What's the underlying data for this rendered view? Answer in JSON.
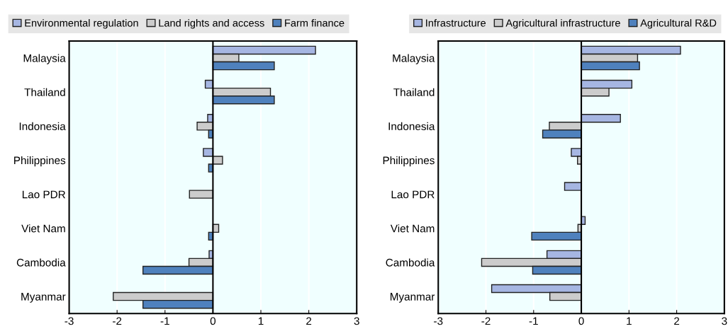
{
  "chart_data": [
    {
      "type": "bar",
      "orientation": "horizontal",
      "categories": [
        "Malaysia",
        "Thailand",
        "Indonesia",
        "Philippines",
        "Lao PDR",
        "Viet Nam",
        "Cambodia",
        "Myanmar"
      ],
      "series": [
        {
          "name": "Environmental regulation",
          "color": "#a6b6e2",
          "values": [
            2.14,
            -0.16,
            -0.11,
            -0.2,
            null,
            null,
            -0.08,
            null
          ]
        },
        {
          "name": "Land rights and access",
          "color": "#cccccc",
          "values": [
            0.54,
            1.2,
            -0.33,
            0.2,
            -0.49,
            0.12,
            -0.5,
            -2.08
          ]
        },
        {
          "name": "Farm finance",
          "color": "#4f81bd",
          "values": [
            1.28,
            1.28,
            -0.09,
            -0.09,
            null,
            -0.09,
            -1.46,
            -1.46
          ]
        }
      ],
      "xlim": [
        -3,
        3
      ],
      "xticks": [
        -3,
        -2,
        -1,
        0,
        1,
        2,
        3
      ],
      "grid": "x",
      "legend": "top"
    },
    {
      "type": "bar",
      "orientation": "horizontal",
      "categories": [
        "Malaysia",
        "Thailand",
        "Indonesia",
        "Philippines",
        "Lao PDR",
        "Viet Nam",
        "Cambodia",
        "Myanmar"
      ],
      "series": [
        {
          "name": "Infrastructure",
          "color": "#a6b6e2",
          "values": [
            2.08,
            1.06,
            0.82,
            -0.21,
            -0.35,
            0.08,
            -0.72,
            -1.88
          ]
        },
        {
          "name": "Agricultural infrastructure",
          "color": "#cccccc",
          "values": [
            1.18,
            0.58,
            -0.67,
            -0.08,
            null,
            -0.07,
            -2.09,
            -0.66
          ]
        },
        {
          "name": "Agricultural R&D",
          "color": "#4f81bd",
          "values": [
            1.22,
            null,
            -0.81,
            null,
            null,
            -1.04,
            -1.02,
            null
          ]
        }
      ],
      "xlim": [
        -3,
        3
      ],
      "xticks": [
        -3,
        -2,
        -1,
        0,
        1,
        2,
        3
      ],
      "grid": "x",
      "legend": "top"
    }
  ]
}
